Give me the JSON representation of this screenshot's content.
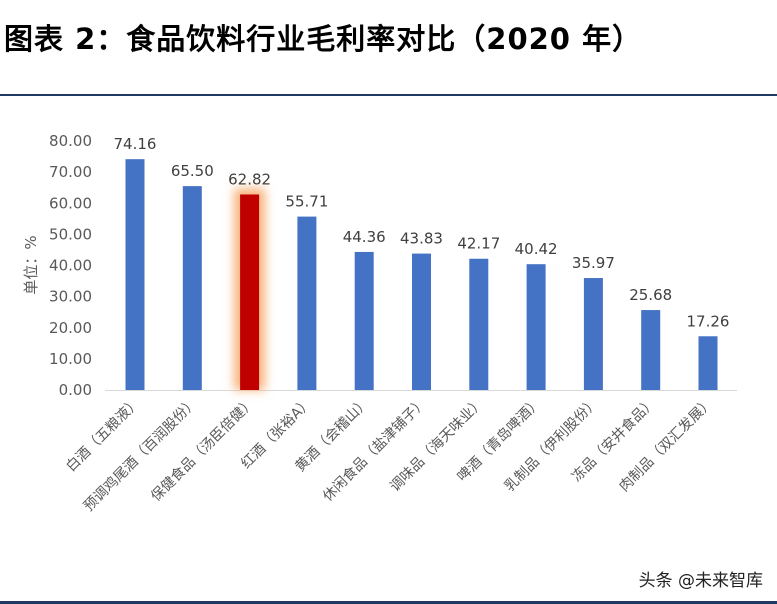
{
  "title": "图表 2：食品饮料行业毛利率对比（2020 年）",
  "watermark": "头条 @未来智库",
  "chart_data": {
    "type": "bar",
    "title": "图表 2：食品饮料行业毛利率对比（2020 年）",
    "ylabel": "单位：%",
    "xlabel": "",
    "ylim": [
      0,
      80
    ],
    "yticks": [
      "0.00",
      "10.00",
      "20.00",
      "30.00",
      "40.00",
      "50.00",
      "60.00",
      "70.00",
      "80.00"
    ],
    "categories": [
      "白酒（五粮液）",
      "预调鸡尾酒（百润股份）",
      "保健食品（汤臣倍健）",
      "红酒（张裕A）",
      "黄酒（会稽山）",
      "休闲食品（盐津铺子）",
      "调味品（海天味业）",
      "啤酒（青岛啤酒）",
      "乳制品（伊利股份）",
      "冻品（安井食品）",
      "肉制品（双汇发展）"
    ],
    "values": [
      74.16,
      65.5,
      62.82,
      55.71,
      44.36,
      43.83,
      42.17,
      40.42,
      35.97,
      25.68,
      17.26
    ],
    "labels": [
      "74.16",
      "65.50",
      "62.82",
      "55.71",
      "44.36",
      "43.83",
      "42.17",
      "40.42",
      "35.97",
      "25.68",
      "17.26"
    ],
    "highlight_index": 2,
    "colors": {
      "bar": "#4472c4",
      "highlight": "#c00000",
      "glow": "#f8b27a"
    },
    "grid": false
  }
}
